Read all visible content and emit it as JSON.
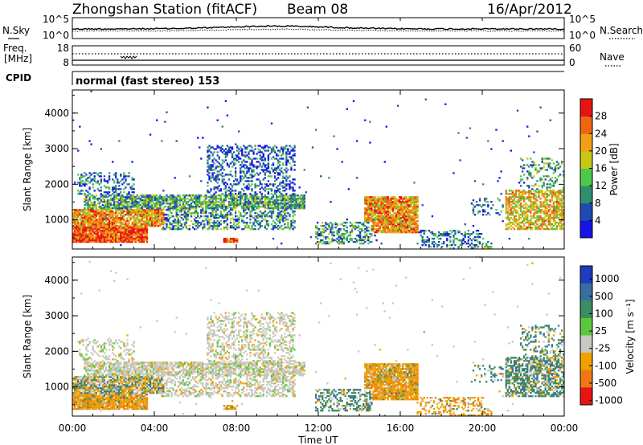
{
  "header": {
    "station": "Zhongshan Station (fitACF)",
    "beam": "Beam 08",
    "date": "16/Apr/2012"
  },
  "noise_panel": {
    "left_label": "N.Sky",
    "left_ticks": [
      "10^5",
      "10^0"
    ],
    "right_ticks": [
      "10^5",
      "10^0"
    ],
    "right_label": "N.Search"
  },
  "freq_panel": {
    "left_label_line1": "Freq.",
    "left_label_line2": "[MHz]",
    "left_ticks": [
      "18",
      "8"
    ],
    "right_ticks": [
      "60",
      "0"
    ],
    "right_label": "Nave"
  },
  "cpid": {
    "label": "CPID",
    "value": "normal (fast stereo) 153"
  },
  "chart_data": [
    {
      "type": "heatmap",
      "name": "power",
      "ylabel": "Slant Range [km]",
      "yticks": [
        "1000",
        "2000",
        "3000",
        "4000"
      ],
      "ylim": [
        180,
        4650
      ],
      "colorbar_label": "Power [dB]",
      "colorbar_ticks": [
        "4",
        "8",
        "12",
        "16",
        "20",
        "24",
        "28"
      ],
      "colors": [
        "#1414e8",
        "#1e4ab4",
        "#2f8f6d",
        "#4cc84a",
        "#c8c814",
        "#f0a014",
        "#f06414",
        "#e81414"
      ],
      "colorbar_range": [
        0,
        32
      ]
    },
    {
      "type": "heatmap",
      "name": "velocity",
      "ylabel": "Slant Range [km]",
      "yticks": [
        "1000",
        "2000",
        "3000",
        "4000"
      ],
      "ylim": [
        180,
        4650
      ],
      "colorbar_label": "Velocity [m s⁻¹]",
      "colorbar_ticks": [
        "1000",
        "500",
        "100",
        "25",
        "-25",
        "-100",
        "-500",
        "-1000"
      ],
      "colors": [
        "#1e3cbe",
        "#3a6ea0",
        "#3c8c64",
        "#5ac83c",
        "#c8c8c0",
        "#f0a000",
        "#f07814",
        "#e81414"
      ]
    }
  ],
  "xaxis": {
    "label": "Time UT",
    "ticks": [
      "00:00",
      "04:00",
      "08:00",
      "12:00",
      "16:00",
      "20:00",
      "00:00"
    ]
  }
}
